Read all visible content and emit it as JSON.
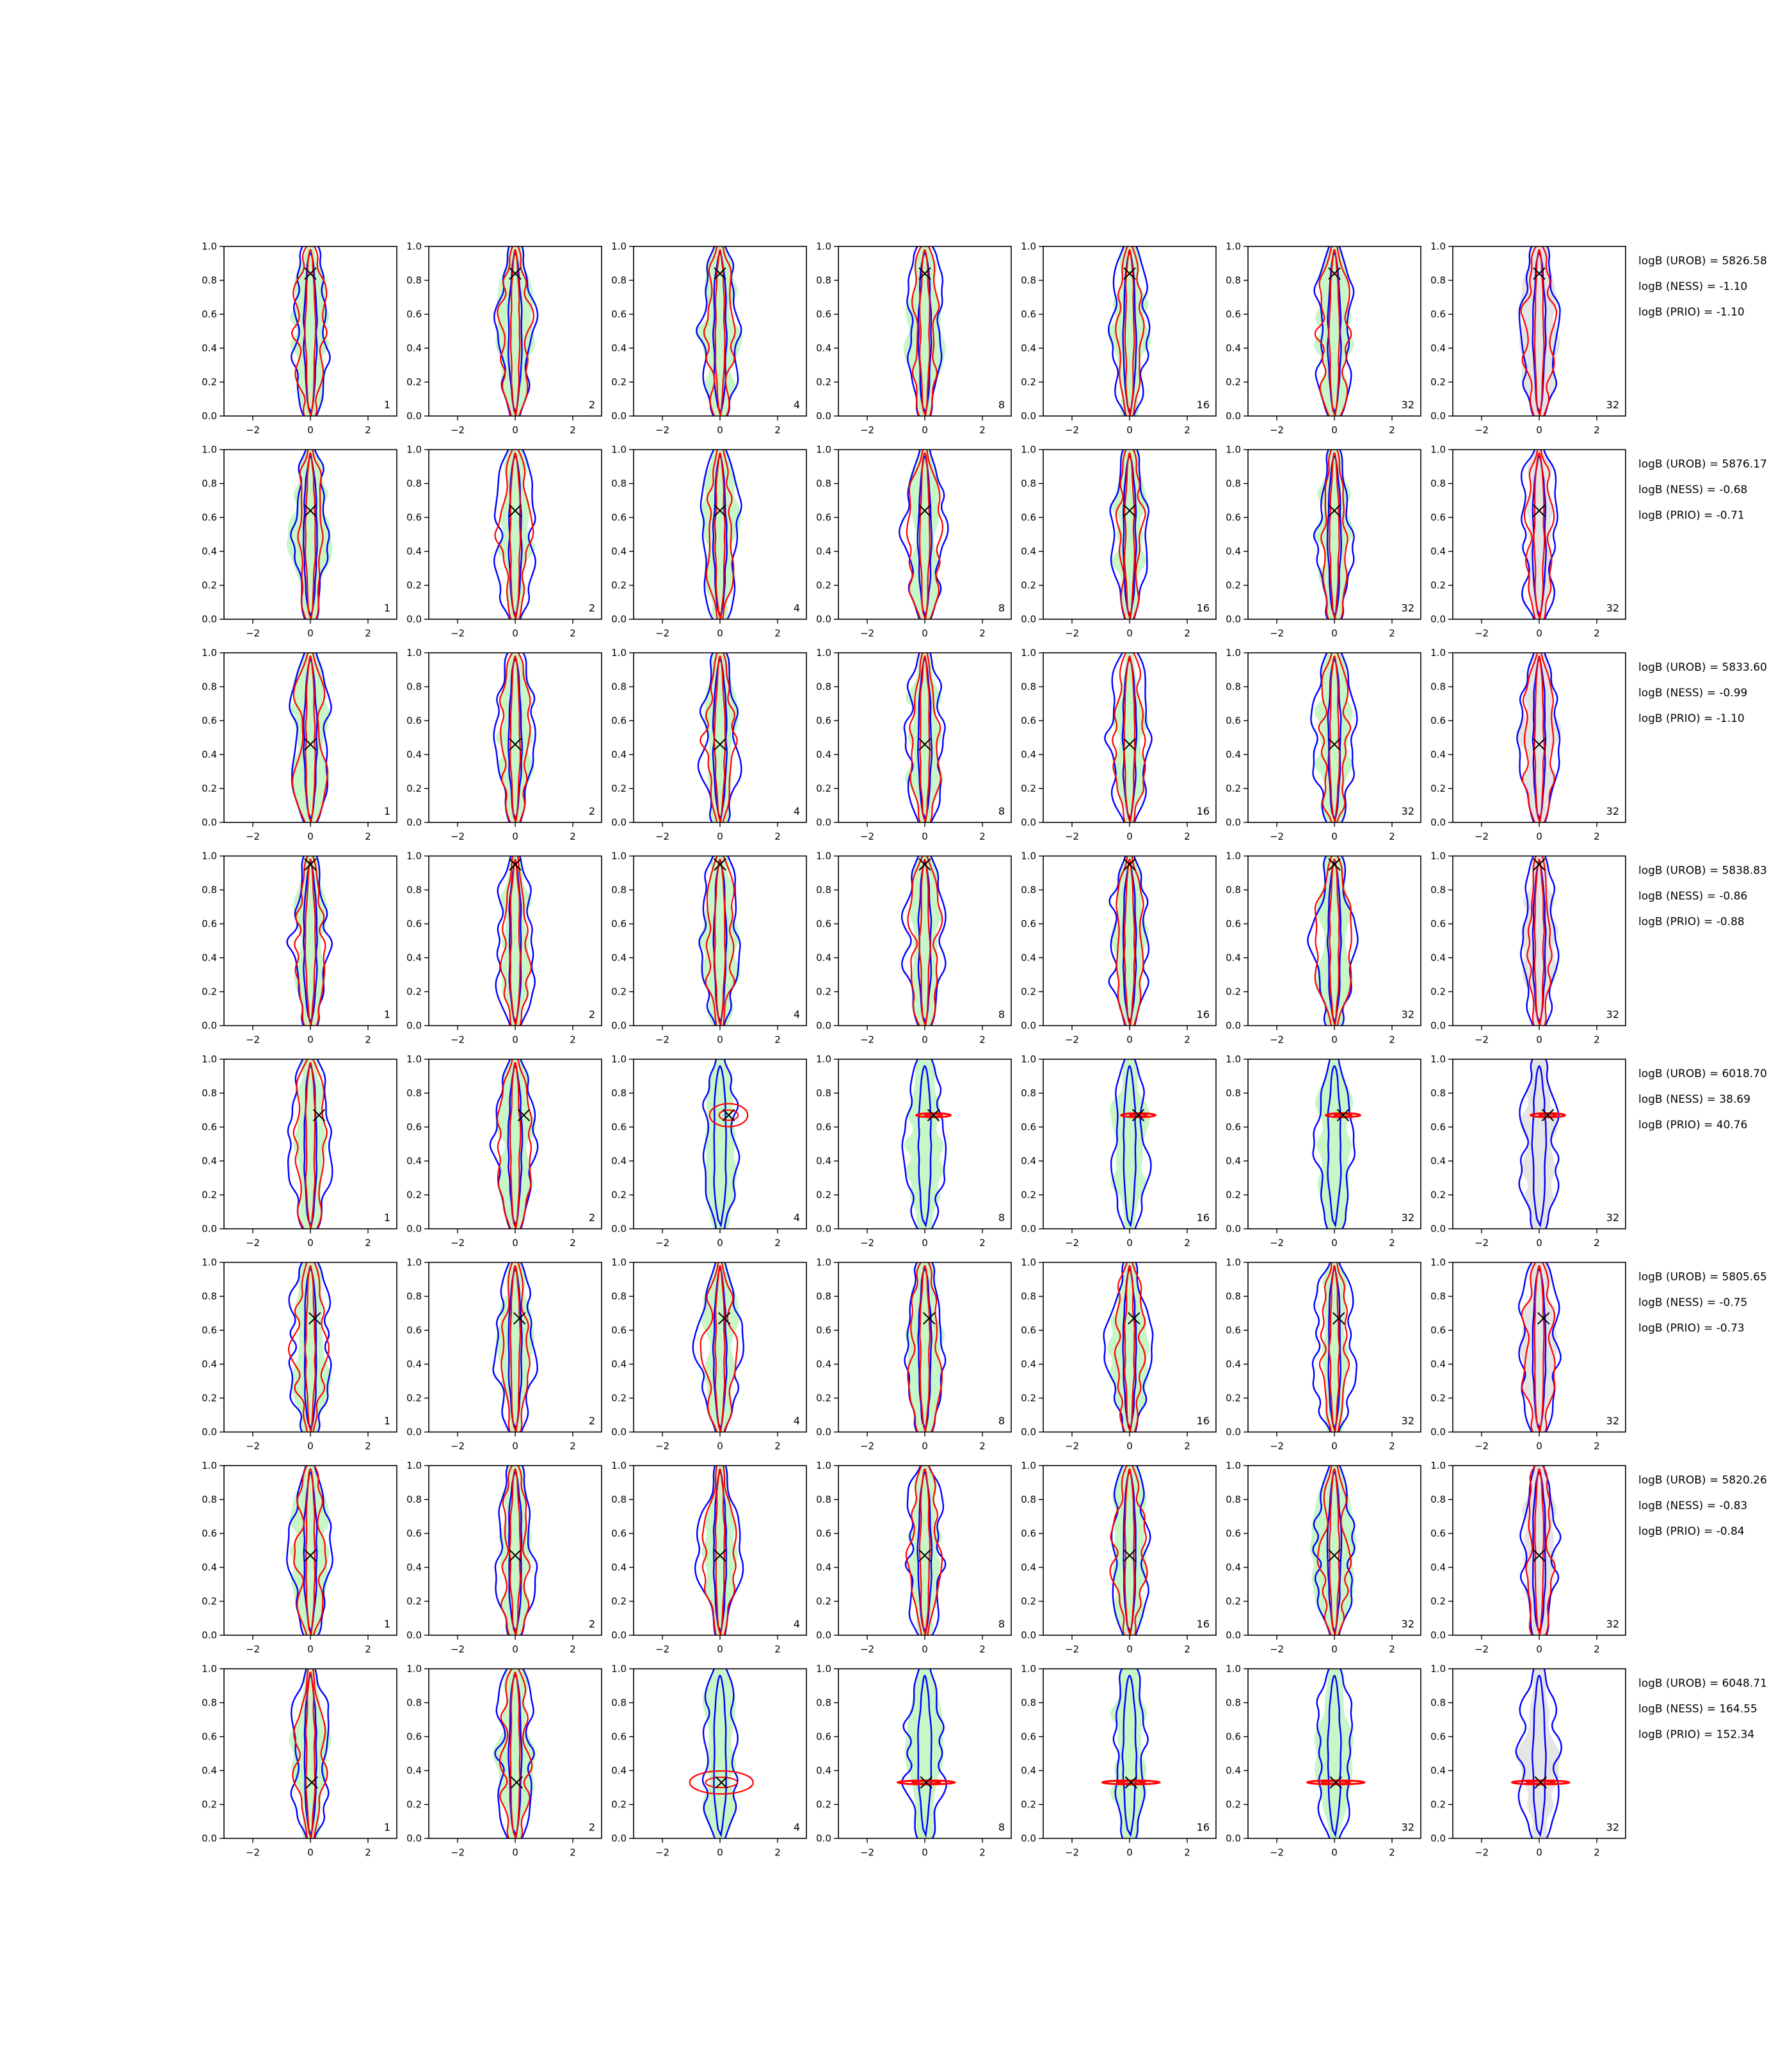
{
  "figure": {
    "columns": [
      "1",
      "2",
      "4",
      "8",
      "16",
      "32",
      "32"
    ],
    "xlim": [
      -3,
      3
    ],
    "ylim": [
      0,
      1
    ],
    "xticks": [
      -2,
      0,
      2
    ],
    "yticks": [
      0.0,
      0.2,
      0.4,
      0.6,
      0.8,
      1.0
    ],
    "xtick_labels": [
      "−2",
      "0",
      "2"
    ],
    "ytick_labels": [
      "0.0",
      "0.2",
      "0.4",
      "0.6",
      "0.8",
      "1.0"
    ],
    "colors": {
      "blue_contour": "#0000ff",
      "red_contour": "#ff0000",
      "green_fill": "#90ee90",
      "grey_fill": "#d3d3d3",
      "marker": "#000000"
    }
  },
  "chart_data": {
    "type": "contour",
    "grid": {
      "rows": 8,
      "cols": 7
    },
    "rows": [
      {
        "true_x": 0.0,
        "true_y": 0.84,
        "red_mode": "wide",
        "red_width": 0.35,
        "bayes": [
          "logB (UROB) = 5826.58",
          "logB (NESS) = -1.10",
          "logB (PRIO) = -1.10"
        ]
      },
      {
        "true_x": 0.0,
        "true_y": 0.64,
        "red_mode": "wide",
        "red_width": 0.35,
        "bayes": [
          "logB (UROB) = 5876.17",
          "logB (NESS) = -0.68",
          "logB (PRIO) = -0.71"
        ]
      },
      {
        "true_x": 0.0,
        "true_y": 0.46,
        "red_mode": "wide",
        "red_width": 0.35,
        "bayes": [
          "logB (UROB) = 5833.60",
          "logB (NESS) = -0.99",
          "logB (PRIO) = -1.10"
        ]
      },
      {
        "true_x": 0.0,
        "true_y": 0.95,
        "red_mode": "wide",
        "red_width": 0.35,
        "bayes": [
          "logB (UROB) = 5838.83",
          "logB (NESS) = -0.86",
          "logB (PRIO) = -0.88"
        ]
      },
      {
        "true_x": 0.3,
        "true_y": 0.67,
        "red_mode": "narrow",
        "red_width": 0.6,
        "bayes": [
          "logB (UROB) = 6018.70",
          "logB (NESS) = 38.69",
          "logB (PRIO) = 40.76"
        ]
      },
      {
        "true_x": 0.15,
        "true_y": 0.67,
        "red_mode": "wide",
        "red_width": 0.35,
        "bayes": [
          "logB (UROB) = 5805.65",
          "logB (NESS) = -0.75",
          "logB (PRIO) = -0.73"
        ]
      },
      {
        "true_x": 0.0,
        "true_y": 0.47,
        "red_mode": "wide",
        "red_width": 0.35,
        "bayes": [
          "logB (UROB) = 5820.26",
          "logB (NESS) = -0.83",
          "logB (PRIO) = -0.84"
        ]
      },
      {
        "true_x": 0.05,
        "true_y": 0.33,
        "red_mode": "narrow",
        "red_width": 1.0,
        "bayes": [
          "logB (UROB) = 6048.71",
          "logB (NESS) = 164.55",
          "logB (PRIO) = 152.34"
        ]
      }
    ]
  }
}
